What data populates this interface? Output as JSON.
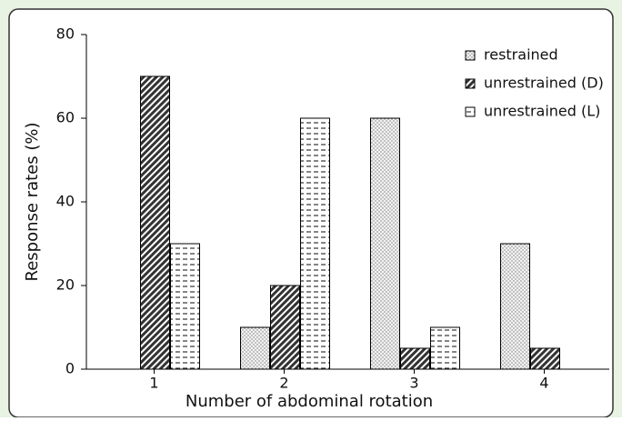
{
  "chart_data": {
    "type": "bar",
    "xlabel": "Number of abdominal rotation",
    "ylabel": "Response rates (%)",
    "categories": [
      "1",
      "2",
      "3",
      "4"
    ],
    "series": [
      {
        "name": "restrained",
        "color": "#e6e6e6",
        "values": [
          0,
          10,
          60,
          30
        ]
      },
      {
        "name": "unrestrained (D)",
        "color": "#333333",
        "values": [
          70,
          20,
          5,
          5
        ]
      },
      {
        "name": "unrestrained (L)",
        "color": "#ffffff",
        "values": [
          30,
          60,
          10,
          0
        ]
      }
    ],
    "ylim": [
      0,
      80
    ],
    "yticks": [
      0,
      20,
      40,
      60,
      80
    ],
    "legend": "upper right"
  }
}
